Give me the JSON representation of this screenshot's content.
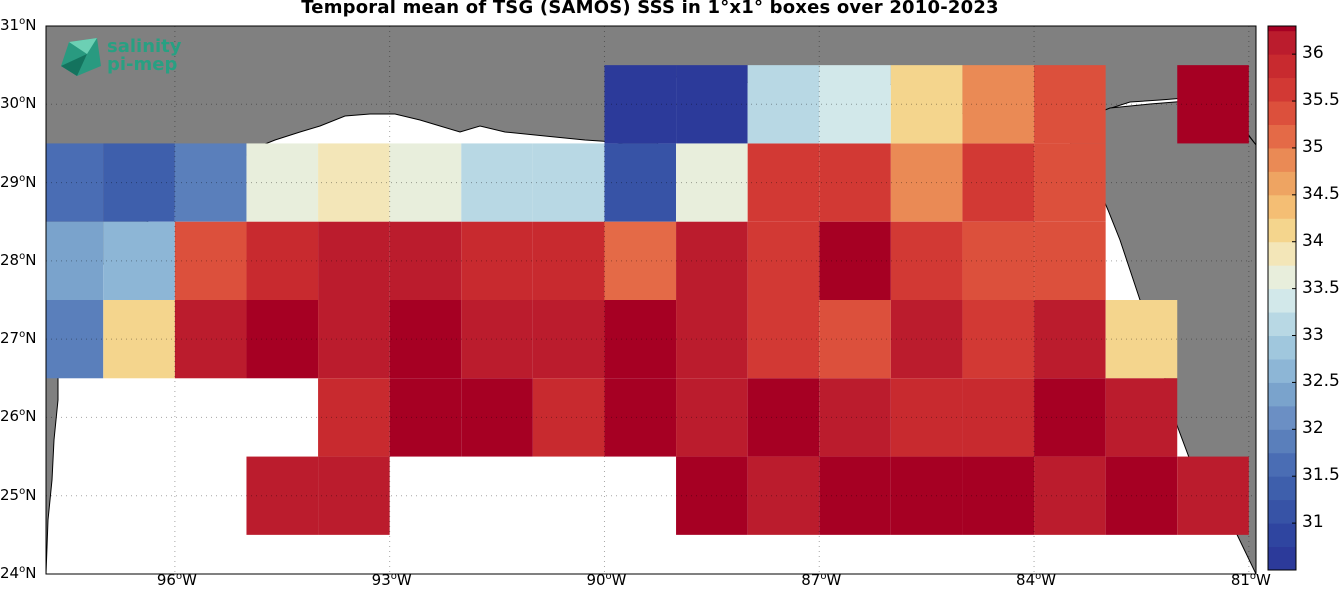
{
  "title": "Temporal mean of TSG (SAMOS) SSS in 1°x1° boxes over 2010-2023",
  "logo": {
    "line1": "salinity",
    "line2": "pi-mep"
  },
  "lat_ticks": [
    {
      "deg": "31",
      "hem": "N"
    },
    {
      "deg": "30",
      "hem": "N"
    },
    {
      "deg": "29",
      "hem": "N"
    },
    {
      "deg": "28",
      "hem": "N"
    },
    {
      "deg": "27",
      "hem": "N"
    },
    {
      "deg": "26",
      "hem": "N"
    },
    {
      "deg": "25",
      "hem": "N"
    },
    {
      "deg": "24",
      "hem": "N"
    }
  ],
  "lon_ticks": [
    {
      "deg": "96",
      "hem": "W"
    },
    {
      "deg": "93",
      "hem": "W"
    },
    {
      "deg": "90",
      "hem": "W"
    },
    {
      "deg": "87",
      "hem": "W"
    },
    {
      "deg": "84",
      "hem": "W"
    },
    {
      "deg": "81",
      "hem": "W"
    }
  ],
  "colorbar": {
    "min": 30.5,
    "max": 36.3,
    "step": 0.25,
    "tick_labels": [
      "36",
      "35.5",
      "35",
      "34.5",
      "34",
      "33.5",
      "33",
      "32.5",
      "32",
      "31.5",
      "31"
    ],
    "colors": {
      "30.5": "#2c3a9a",
      "30.75": "#2f45a0",
      "31": "#3753a6",
      "31.25": "#3e5fac",
      "31.5": "#4a6db4",
      "31.75": "#5a7fbb",
      "32": "#6b8fc4",
      "32.25": "#7aa3cc",
      "32.5": "#8db6d6",
      "32.75": "#a0c7dd",
      "33": "#b8d8e4",
      "33.25": "#d2e8ea",
      "33.5": "#e8eedc",
      "33.75": "#f3e6b8",
      "34": "#f4d58d",
      "34.25": "#f4be74",
      "34.5": "#eea462",
      "34.75": "#ea8a55",
      "35": "#e46a47",
      "35.25": "#dc503c",
      "35.5": "#d23934",
      "35.75": "#c82a2f",
      "36": "#bb1c2d",
      "36.25": "#a60023"
    }
  },
  "land_color": "#808080",
  "grid": {
    "lon_min": -97.8,
    "lon_max": -80.9,
    "lat_min": 24,
    "lat_max": 31
  },
  "sss_cells": [
    [
      -97.5,
      29,
      31.5
    ],
    [
      -96.5,
      29,
      31.25
    ],
    [
      -95.5,
      29,
      31.75
    ],
    [
      -94.5,
      29,
      33.5
    ],
    [
      -93.5,
      29,
      33.75
    ],
    [
      -92.5,
      29,
      33.5
    ],
    [
      -91.5,
      29,
      33
    ],
    [
      -90.5,
      29,
      33
    ],
    [
      -89.5,
      29,
      31
    ],
    [
      -88.5,
      29,
      33.5
    ],
    [
      -87.5,
      29,
      35.5
    ],
    [
      -86.5,
      29,
      35.5
    ],
    [
      -85.5,
      29,
      34.75
    ],
    [
      -84.5,
      29,
      35.5
    ],
    [
      -83.5,
      29,
      35.25
    ],
    [
      -89.5,
      30,
      30.5
    ],
    [
      -88.5,
      30,
      30.5
    ],
    [
      -87.5,
      30,
      33
    ],
    [
      -86.5,
      30,
      33.25
    ],
    [
      -85.5,
      30,
      34
    ],
    [
      -84.5,
      30,
      34.75
    ],
    [
      -83.5,
      30,
      35.25
    ],
    [
      -81.5,
      30,
      36.25
    ],
    [
      -97.5,
      28,
      32.25
    ],
    [
      -96.5,
      28,
      32.5
    ],
    [
      -95.5,
      28,
      35.25
    ],
    [
      -94.5,
      28,
      35.75
    ],
    [
      -93.5,
      28,
      36
    ],
    [
      -92.5,
      28,
      36
    ],
    [
      -91.5,
      28,
      35.75
    ],
    [
      -90.5,
      28,
      35.75
    ],
    [
      -89.5,
      28,
      35
    ],
    [
      -88.5,
      28,
      36
    ],
    [
      -87.5,
      28,
      35.5
    ],
    [
      -86.5,
      28,
      36.25
    ],
    [
      -85.5,
      28,
      35.5
    ],
    [
      -84.5,
      28,
      35.25
    ],
    [
      -83.5,
      28,
      35.25
    ],
    [
      -97.5,
      27,
      31.75
    ],
    [
      -96.5,
      27,
      34
    ],
    [
      -95.5,
      27,
      36
    ],
    [
      -94.5,
      27,
      36.25
    ],
    [
      -93.5,
      27,
      36
    ],
    [
      -92.5,
      27,
      36.25
    ],
    [
      -91.5,
      27,
      36
    ],
    [
      -90.5,
      27,
      36
    ],
    [
      -89.5,
      27,
      36.25
    ],
    [
      -88.5,
      27,
      36
    ],
    [
      -87.5,
      27,
      35.5
    ],
    [
      -86.5,
      27,
      35.25
    ],
    [
      -85.5,
      27,
      36
    ],
    [
      -84.5,
      27,
      35.5
    ],
    [
      -83.5,
      27,
      36
    ],
    [
      -82.5,
      27,
      34
    ],
    [
      -93.5,
      26,
      35.75
    ],
    [
      -92.5,
      26,
      36.25
    ],
    [
      -91.5,
      26,
      36.25
    ],
    [
      -90.5,
      26,
      35.75
    ],
    [
      -89.5,
      26,
      36.25
    ],
    [
      -88.5,
      26,
      36
    ],
    [
      -87.5,
      26,
      36.25
    ],
    [
      -86.5,
      26,
      36
    ],
    [
      -85.5,
      26,
      35.75
    ],
    [
      -84.5,
      26,
      35.75
    ],
    [
      -83.5,
      26,
      36.25
    ],
    [
      -82.5,
      26,
      36
    ],
    [
      -94.5,
      25,
      36
    ],
    [
      -93.5,
      25,
      36
    ],
    [
      -88.5,
      25,
      36.25
    ],
    [
      -87.5,
      25,
      36
    ],
    [
      -86.5,
      25,
      36.25
    ],
    [
      -85.5,
      25,
      36.25
    ],
    [
      -84.5,
      25,
      36.25
    ],
    [
      -83.5,
      25,
      36
    ],
    [
      -82.5,
      25,
      36.25
    ],
    [
      -81.5,
      25,
      36
    ]
  ]
}
